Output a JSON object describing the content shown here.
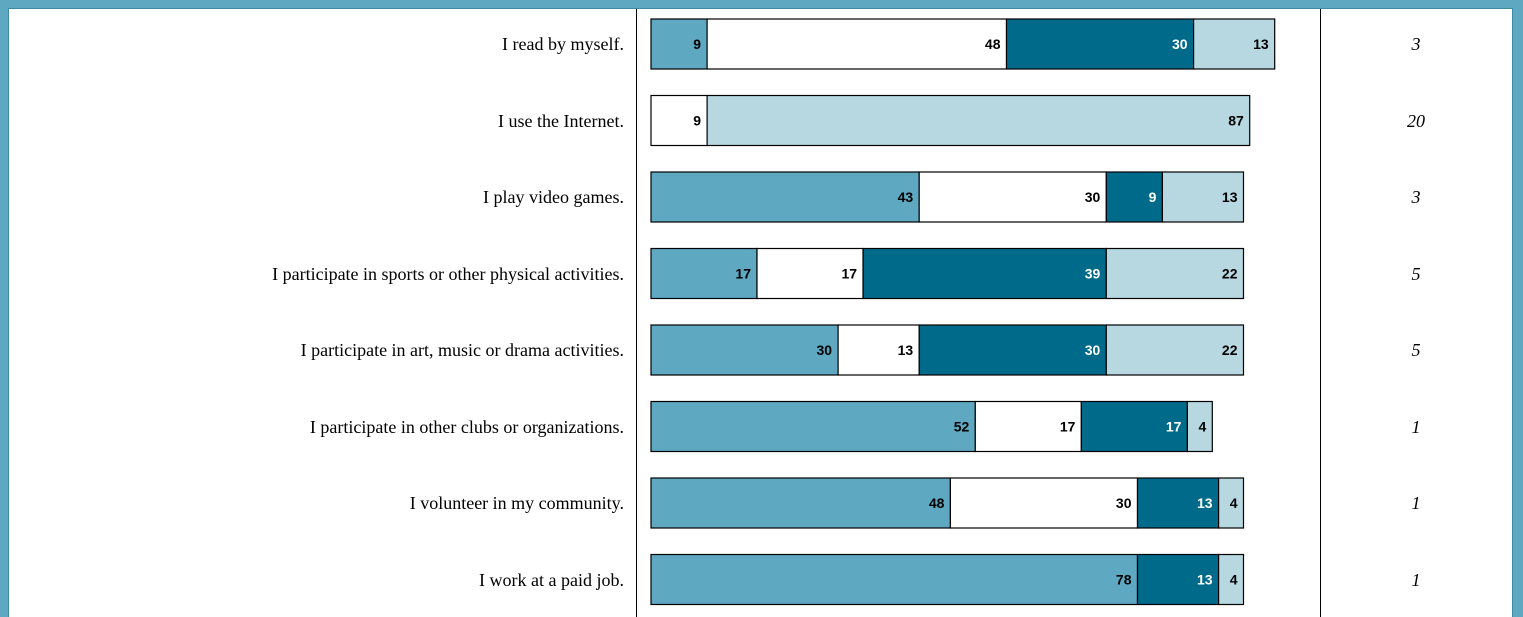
{
  "chart_data": {
    "type": "bar",
    "orientation": "horizontal",
    "stacked": true,
    "xlim": [
      0,
      100
    ],
    "categories": [
      "I read by myself.",
      "I use the Internet.",
      "I play video games.",
      "I participate in sports or other physical activities.",
      "I participate in art, music or drama activities.",
      "I participate in other clubs or organizations.",
      "I volunteer in my community.",
      "I work at a paid job."
    ],
    "series": [
      {
        "color": "#5ea8c1",
        "label_color": "#000000",
        "values": [
          9,
          0,
          43,
          17,
          30,
          52,
          48,
          78
        ]
      },
      {
        "color": "#ffffff",
        "label_color": "#000000",
        "values": [
          48,
          9,
          30,
          17,
          13,
          17,
          30,
          0
        ]
      },
      {
        "color": "#006a8b",
        "label_color": "#ffffff",
        "values": [
          30,
          0,
          9,
          39,
          30,
          17,
          13,
          13
        ]
      },
      {
        "color": "#b7d7e1",
        "label_color": "#000000",
        "values": [
          13,
          87,
          13,
          22,
          22,
          4,
          4,
          4
        ]
      }
    ],
    "right_column_values": [
      "3",
      "20",
      "3",
      "5",
      "5",
      "1",
      "1",
      "1"
    ]
  }
}
